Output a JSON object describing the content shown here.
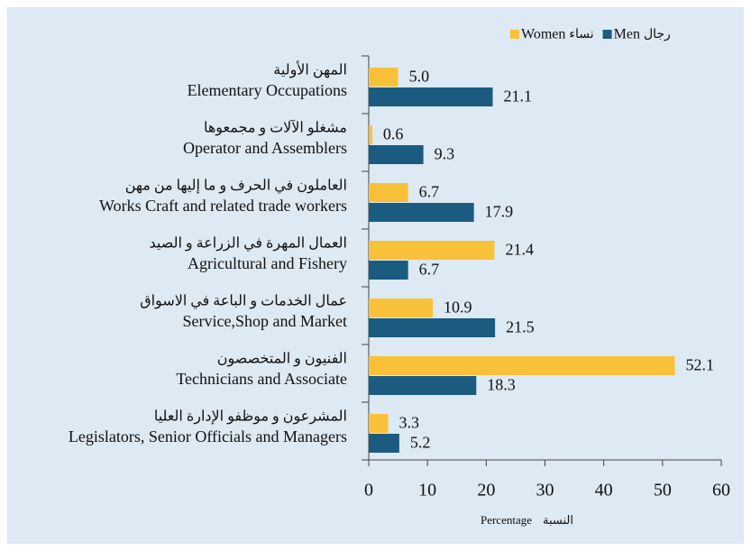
{
  "chart_data": {
    "type": "barh",
    "categories": [
      {
        "ar": "المهن الأولية",
        "en": "Elementary Occupations"
      },
      {
        "ar": "مشغلو الآلات و مجمعوها",
        "en": "Operator and Assemblers"
      },
      {
        "ar": "العاملون في الحرف و ما إليها من مهن",
        "en": "Works Craft and related trade workers"
      },
      {
        "ar": "العمال المهرة في الزراعة و الصيد",
        "en": "Agricultural and Fishery"
      },
      {
        "ar": "عمال الخدمات و الباعة في الاسواق",
        "en": "Service,Shop and Market"
      },
      {
        "ar": "الفنيون و المتخصصون",
        "en": "Technicians and Associate"
      },
      {
        "ar": "المشرعون و موظفو الإدارة العليا",
        "en": "Legislators, Senior Officials and Managers"
      }
    ],
    "series": [
      {
        "name": "Women",
        "name_ar": "نساء",
        "color": "#f9c13a",
        "values": [
          5.0,
          0.6,
          6.7,
          21.4,
          10.9,
          52.1,
          3.3
        ],
        "value_labels": [
          "5.0",
          "0.6",
          "6.7",
          "21.4",
          "10.9",
          "52.1",
          "3.3"
        ]
      },
      {
        "name": "Men",
        "name_ar": "رجال",
        "color": "#1b5b7f",
        "values": [
          21.1,
          9.3,
          17.9,
          6.7,
          21.5,
          18.3,
          5.2
        ],
        "value_labels": [
          "21.1",
          "9.3",
          "17.9",
          "6.7",
          "21.5",
          "18.3",
          "5.2"
        ]
      }
    ],
    "xlim": [
      0,
      60
    ],
    "xticks": [
      0,
      10,
      20,
      30,
      40,
      50,
      60
    ],
    "xlabel": "Percentage",
    "xlabel_ar": "النسبة",
    "legend": "top-right"
  }
}
